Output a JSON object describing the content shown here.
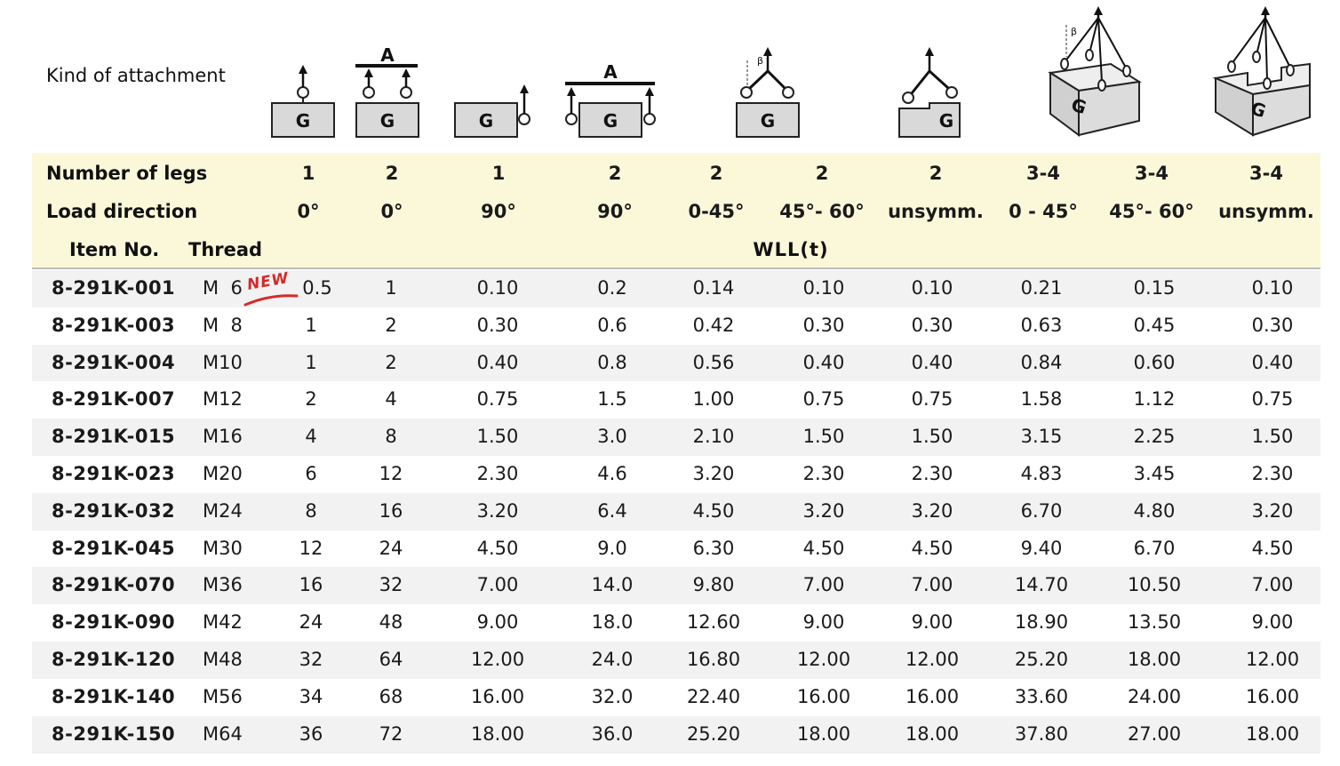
{
  "header": {
    "kind_label": "Kind of attachment",
    "legs_label": "Number of legs",
    "direction_label": "Load direction",
    "item_label": "Item No.",
    "thread_label": "Thread",
    "wll_label": "WLL(t)",
    "new_badge": "NEW"
  },
  "icons": [
    {
      "name": "single-leg-vertical-icon",
      "glyph": "G"
    },
    {
      "name": "two-leg-spreader-vertical-icon",
      "glyph": "G",
      "marker": "A"
    },
    {
      "name": "single-leg-side-icon",
      "glyph": "G"
    },
    {
      "name": "two-leg-spreader-side-icon",
      "glyph": "G",
      "marker": "A"
    },
    {
      "name": "two-leg-angle-icon",
      "glyph": "G",
      "marker": "β"
    },
    {
      "name": "two-leg-unsymmetric-icon",
      "glyph": "G"
    },
    {
      "name": "multi-leg-angle-icon",
      "glyph": "G",
      "marker": "β"
    },
    {
      "name": "multi-leg-unsymmetric-icon",
      "glyph": "G"
    }
  ],
  "columns": [
    {
      "legs": "1",
      "direction": "0°"
    },
    {
      "legs": "2",
      "direction": "0°"
    },
    {
      "legs": "1",
      "direction": "90°"
    },
    {
      "legs": "2",
      "direction": "90°"
    },
    {
      "legs": "2",
      "direction": "0-45°"
    },
    {
      "legs": "2",
      "direction": "45°- 60°"
    },
    {
      "legs": "2",
      "direction": "unsymm."
    },
    {
      "legs": "3-4",
      "direction": "0 - 45°"
    },
    {
      "legs": "3-4",
      "direction": "45°- 60°"
    },
    {
      "legs": "3-4",
      "direction": "unsymm."
    }
  ],
  "rows": [
    {
      "item": "8-291K-001",
      "thread": "M  6",
      "values": [
        "0.5",
        "1",
        "0.10",
        "0.2",
        "0.14",
        "0.10",
        "0.10",
        "0.21",
        "0.15",
        "0.10"
      ]
    },
    {
      "item": "8-291K-003",
      "thread": "M  8",
      "values": [
        "1",
        "2",
        "0.30",
        "0.6",
        "0.42",
        "0.30",
        "0.30",
        "0.63",
        "0.45",
        "0.30"
      ]
    },
    {
      "item": "8-291K-004",
      "thread": "M10",
      "values": [
        "1",
        "2",
        "0.40",
        "0.8",
        "0.56",
        "0.40",
        "0.40",
        "0.84",
        "0.60",
        "0.40"
      ]
    },
    {
      "item": "8-291K-007",
      "thread": "M12",
      "values": [
        "2",
        "4",
        "0.75",
        "1.5",
        "1.00",
        "0.75",
        "0.75",
        "1.58",
        "1.12",
        "0.75"
      ]
    },
    {
      "item": "8-291K-015",
      "thread": "M16",
      "values": [
        "4",
        "8",
        "1.50",
        "3.0",
        "2.10",
        "1.50",
        "1.50",
        "3.15",
        "2.25",
        "1.50"
      ]
    },
    {
      "item": "8-291K-023",
      "thread": "M20",
      "values": [
        "6",
        "12",
        "2.30",
        "4.6",
        "3.20",
        "2.30",
        "2.30",
        "4.83",
        "3.45",
        "2.30"
      ]
    },
    {
      "item": "8-291K-032",
      "thread": "M24",
      "values": [
        "8",
        "16",
        "3.20",
        "6.4",
        "4.50",
        "3.20",
        "3.20",
        "6.70",
        "4.80",
        "3.20"
      ]
    },
    {
      "item": "8-291K-045",
      "thread": "M30",
      "values": [
        "12",
        "24",
        "4.50",
        "9.0",
        "6.30",
        "4.50",
        "4.50",
        "9.40",
        "6.70",
        "4.50"
      ]
    },
    {
      "item": "8-291K-070",
      "thread": "M36",
      "values": [
        "16",
        "32",
        "7.00",
        "14.0",
        "9.80",
        "7.00",
        "7.00",
        "14.70",
        "10.50",
        "7.00"
      ]
    },
    {
      "item": "8-291K-090",
      "thread": "M42",
      "values": [
        "24",
        "48",
        "9.00",
        "18.0",
        "12.60",
        "9.00",
        "9.00",
        "18.90",
        "13.50",
        "9.00"
      ]
    },
    {
      "item": "8-291K-120",
      "thread": "M48",
      "values": [
        "32",
        "64",
        "12.00",
        "24.0",
        "16.80",
        "12.00",
        "12.00",
        "25.20",
        "18.00",
        "12.00"
      ]
    },
    {
      "item": "8-291K-140",
      "thread": "M56",
      "values": [
        "34",
        "68",
        "16.00",
        "32.0",
        "22.40",
        "16.00",
        "16.00",
        "33.60",
        "24.00",
        "16.00"
      ]
    },
    {
      "item": "8-291K-150",
      "thread": "M64",
      "values": [
        "36",
        "72",
        "18.00",
        "36.0",
        "25.20",
        "18.00",
        "18.00",
        "37.80",
        "27.00",
        "18.00"
      ]
    }
  ],
  "colors": {
    "header_band": "#fbf8da",
    "row_stripe": "#f2f2f2",
    "icon_fill": "#d9d9d9",
    "badge": "#d42a2a"
  }
}
